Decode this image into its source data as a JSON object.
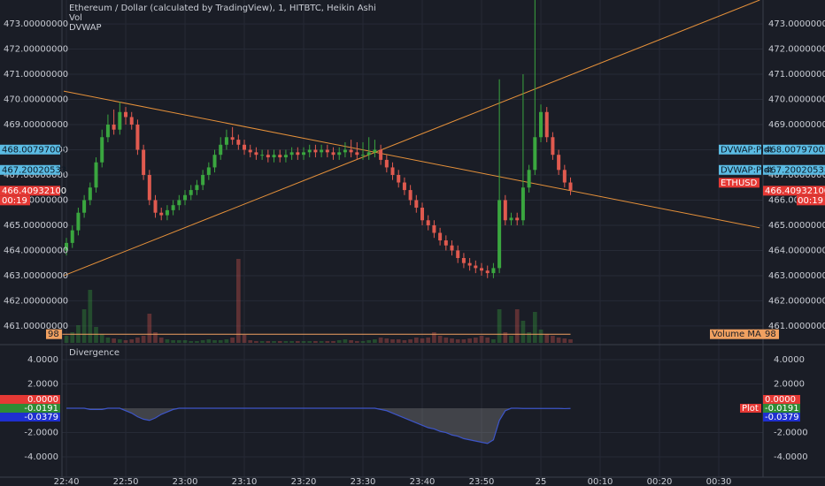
{
  "chart_data": [
    {
      "type": "candlestick",
      "title": "Ethereum / Dollar (calculated by TradingView), 1, HITBTC, Heikin Ashi",
      "indicators": [
        "Vol",
        "DVWAP"
      ],
      "xlim": [
        -0.75,
        117.46
      ],
      "xticks": [
        {
          "value": 0,
          "label": "22:40"
        },
        {
          "value": 10,
          "label": "22:50"
        },
        {
          "value": 20,
          "label": "23:00"
        },
        {
          "value": 30,
          "label": "23:10"
        },
        {
          "value": 40,
          "label": "23:20"
        },
        {
          "value": 50,
          "label": "23:30"
        },
        {
          "value": 60,
          "label": "23:40"
        },
        {
          "value": 70,
          "label": "23:50"
        },
        {
          "value": 80,
          "label": "25"
        },
        {
          "value": 90,
          "label": "00:10"
        },
        {
          "value": 100,
          "label": "00:20"
        },
        {
          "value": 110,
          "label": "00:30"
        }
      ],
      "ylim": [
        460.33,
        473.95
      ],
      "yticks": [
        {
          "value": 461,
          "label": "461.00000000"
        },
        {
          "value": 462,
          "label": "462.00000000"
        },
        {
          "value": 463,
          "label": "463.00000000"
        },
        {
          "value": 464,
          "label": "464.00000000"
        },
        {
          "value": 465,
          "label": "465.00000000"
        },
        {
          "value": 466,
          "label": "466.00000000"
        },
        {
          "value": 467,
          "label": "467.00000000"
        },
        {
          "value": 468,
          "label": "468.00000000"
        },
        {
          "value": 469,
          "label": "469.00000000"
        },
        {
          "value": 470,
          "label": "470.00000000"
        },
        {
          "value": 471,
          "label": "471.00000000"
        },
        {
          "value": 472,
          "label": "472.00000000"
        },
        {
          "value": 473,
          "label": "473.00000000"
        }
      ],
      "grid": true,
      "up_color": "#3aa63f",
      "down_color": "#e05a4f",
      "open": [
        464.0,
        464.3,
        464.8,
        465.5,
        466.0,
        466.5,
        467.5,
        468.5,
        469.0,
        468.8,
        469.5,
        469.3,
        469.0,
        468.0,
        467.0,
        466.0,
        465.5,
        465.4,
        465.6,
        465.8,
        466.0,
        466.2,
        466.4,
        466.6,
        467.0,
        467.3,
        467.8,
        468.2,
        468.5,
        468.4,
        468.2,
        468.0,
        467.9,
        467.8,
        467.8,
        467.7,
        467.8,
        467.7,
        467.8,
        467.9,
        467.8,
        467.9,
        468.0,
        467.9,
        468.0,
        467.9,
        467.8,
        467.9,
        468.0,
        467.9,
        467.8,
        467.8,
        467.9,
        468.0,
        467.6,
        467.3,
        467.0,
        466.7,
        466.4,
        466.0,
        465.7,
        465.2,
        465.0,
        464.7,
        464.4,
        464.2,
        464.0,
        463.7,
        463.5,
        463.4,
        463.3,
        463.2,
        463.1,
        463.3,
        466.0,
        465.2,
        465.3,
        465.2,
        466.5,
        467.2,
        468.5,
        469.5,
        468.5,
        467.8,
        467.2,
        466.7
      ],
      "high": [
        464.5,
        465.0,
        465.7,
        466.2,
        466.7,
        467.7,
        468.8,
        469.4,
        469.6,
        469.9,
        469.7,
        469.5,
        469.2,
        468.2,
        467.2,
        466.2,
        465.7,
        465.8,
        466.0,
        466.2,
        466.4,
        466.6,
        466.8,
        467.2,
        467.5,
        468.0,
        468.5,
        468.8,
        468.9,
        468.6,
        468.4,
        468.2,
        468.1,
        468.0,
        468.0,
        468.0,
        468.0,
        468.0,
        468.1,
        468.1,
        468.1,
        468.2,
        468.2,
        468.2,
        468.2,
        468.1,
        468.1,
        468.3,
        468.4,
        468.3,
        468.3,
        468.5,
        468.4,
        468.2,
        467.8,
        467.5,
        467.2,
        466.9,
        466.6,
        466.2,
        465.9,
        465.4,
        465.2,
        464.9,
        464.6,
        464.4,
        464.2,
        463.9,
        463.7,
        463.6,
        463.5,
        463.4,
        463.5,
        470.8,
        466.2,
        465.5,
        465.5,
        471.0,
        467.4,
        474.0,
        469.8,
        469.7,
        468.7,
        468.0,
        467.4,
        466.9
      ],
      "low": [
        463.8,
        464.1,
        464.6,
        465.3,
        465.8,
        466.3,
        467.3,
        468.3,
        468.6,
        468.6,
        469.0,
        468.8,
        467.8,
        466.8,
        465.8,
        465.3,
        465.2,
        465.2,
        465.4,
        465.6,
        465.8,
        466.0,
        466.2,
        466.4,
        466.8,
        467.1,
        467.6,
        468.0,
        468.2,
        468.0,
        467.8,
        467.7,
        467.6,
        467.6,
        467.5,
        467.5,
        467.5,
        467.5,
        467.6,
        467.6,
        467.6,
        467.7,
        467.7,
        467.7,
        467.7,
        467.6,
        467.6,
        467.7,
        467.7,
        467.6,
        467.6,
        467.6,
        467.7,
        467.4,
        467.1,
        466.8,
        466.5,
        466.2,
        465.8,
        465.5,
        465.0,
        464.8,
        464.5,
        464.2,
        464.0,
        463.8,
        463.5,
        463.3,
        463.2,
        463.1,
        463.0,
        462.9,
        462.9,
        463.1,
        465.0,
        465.0,
        465.0,
        465.0,
        466.3,
        467.0,
        468.3,
        468.3,
        467.6,
        467.0,
        466.5,
        466.2
      ],
      "close": [
        464.3,
        464.8,
        465.5,
        466.0,
        466.5,
        467.5,
        468.5,
        469.0,
        468.8,
        469.5,
        469.3,
        469.0,
        468.0,
        467.0,
        466.0,
        465.5,
        465.4,
        465.6,
        465.8,
        466.0,
        466.2,
        466.4,
        466.6,
        467.0,
        467.3,
        467.8,
        468.2,
        468.5,
        468.4,
        468.2,
        468.0,
        467.9,
        467.8,
        467.8,
        467.7,
        467.8,
        467.7,
        467.8,
        467.9,
        467.8,
        467.9,
        468.0,
        467.9,
        468.0,
        467.9,
        467.8,
        467.9,
        468.0,
        467.9,
        467.8,
        467.8,
        467.9,
        468.0,
        467.6,
        467.3,
        467.0,
        466.7,
        466.4,
        466.0,
        465.7,
        465.2,
        465.0,
        464.7,
        464.4,
        464.2,
        464.0,
        463.7,
        463.5,
        463.4,
        463.3,
        463.2,
        463.1,
        463.3,
        466.0,
        465.2,
        465.3,
        465.2,
        466.5,
        467.2,
        468.5,
        469.5,
        468.5,
        467.8,
        467.2,
        466.7,
        466.4
      ],
      "volume": {
        "name": "Volume MA",
        "value": 98,
        "vlim": [
          0,
          1080
        ],
        "color": "#f0a060",
        "values": [
          80,
          120,
          200,
          380,
          600,
          180,
          100,
          60,
          50,
          40,
          30,
          40,
          60,
          80,
          330,
          120,
          60,
          40,
          30,
          30,
          30,
          20,
          20,
          30,
          40,
          30,
          30,
          40,
          60,
          950,
          90,
          30,
          20,
          20,
          20,
          20,
          20,
          20,
          20,
          20,
          20,
          20,
          20,
          20,
          20,
          20,
          30,
          40,
          30,
          20,
          20,
          30,
          40,
          60,
          50,
          40,
          40,
          30,
          40,
          60,
          50,
          60,
          120,
          80,
          60,
          50,
          40,
          40,
          50,
          60,
          80,
          60,
          40,
          380,
          120,
          80,
          380,
          250,
          120,
          350,
          150,
          100,
          80,
          60,
          50,
          40
        ]
      },
      "trendlines": [
        {
          "x": [
            -0.45,
            116.9
          ],
          "values": [
            470.33,
            464.9
          ],
          "color": "#e6913a"
        },
        {
          "x": [
            -0.45,
            116.9
          ],
          "values": [
            463.0,
            473.95
          ],
          "color": "#e6913a"
        }
      ],
      "markers": [
        {
          "name": "DVWAP:Plot",
          "value": 468.00797005,
          "color": "#5bbbe3"
        },
        {
          "name": "DVWAP:Plot",
          "value": 467.20020533,
          "color": "#5bbbe3"
        }
      ],
      "last_price": {
        "symbol": "ETHUSD",
        "value": 466.409321,
        "value_label": "466.40932100",
        "countdown": "00:19",
        "color": "#e53935"
      }
    },
    {
      "type": "area",
      "title": "Divergence",
      "ylim": [
        -5.67,
        5.09
      ],
      "yticks": [
        {
          "value": 4,
          "label": "4.0000"
        },
        {
          "value": 2,
          "label": "2.0000"
        },
        {
          "value": -2,
          "label": "-2.0000"
        },
        {
          "value": -4,
          "label": "-4.0000"
        }
      ],
      "color": "#3d55c8",
      "values": [
        0,
        0,
        0,
        0,
        -0.1,
        -0.1,
        -0.1,
        0,
        0,
        0,
        -0.2,
        -0.4,
        -0.7,
        -0.9,
        -1.0,
        -0.8,
        -0.5,
        -0.3,
        -0.1,
        0,
        0,
        0,
        0,
        0,
        0,
        0,
        0,
        0,
        0,
        0,
        0,
        0,
        0,
        0,
        0,
        0,
        0,
        0,
        0,
        0,
        0,
        0,
        0,
        0,
        0,
        0,
        0,
        0,
        0,
        0,
        0,
        0,
        0,
        -0.1,
        -0.2,
        -0.4,
        -0.6,
        -0.8,
        -1.0,
        -1.2,
        -1.4,
        -1.6,
        -1.7,
        -1.9,
        -2.0,
        -2.2,
        -2.3,
        -2.5,
        -2.6,
        -2.7,
        -2.8,
        -2.9,
        -2.6,
        -1.0,
        -0.2,
        0,
        0,
        -0.02,
        -0.02,
        -0.02,
        -0.02,
        -0.02,
        -0.02,
        -0.02,
        -0.03,
        -0.0191
      ],
      "markers": [
        {
          "value": 0,
          "value_label": "0.0000",
          "color": "#e53935"
        },
        {
          "name": "Plot",
          "value": -0.0191,
          "color": "#2e8b34",
          "name_color": "#e53935"
        },
        {
          "value": -0.0379,
          "color": "#1f2fd0"
        }
      ]
    }
  ]
}
